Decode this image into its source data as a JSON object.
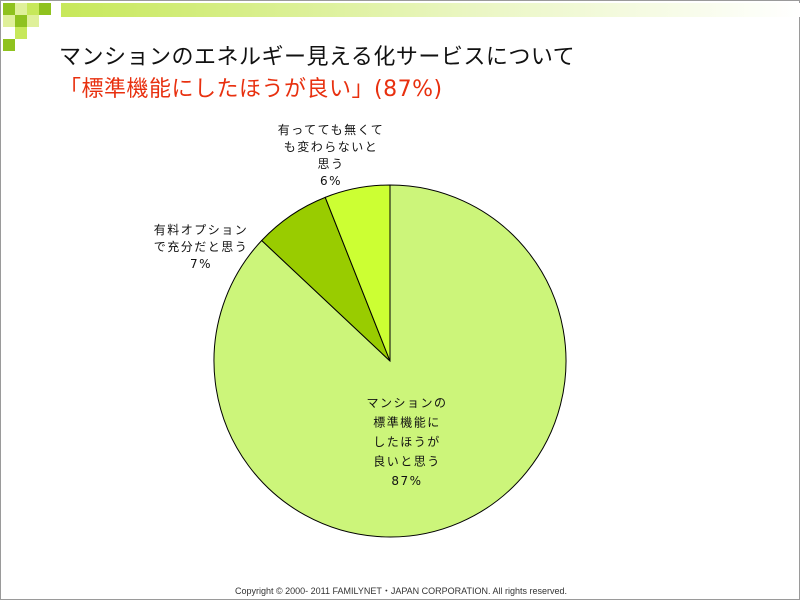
{
  "slide": {
    "title_line1": "マンションのエネルギー見える化サービスについて",
    "title_line2": "「標準機能にしたほうが良い」(87%)",
    "footer": "Copyright © 2000- 2011 FAMILYNET・JAPAN CORPORATION. All rights reserved.",
    "colors": {
      "title_accent": "#e8300f",
      "decor_squares": [
        "#c7e85a",
        "#8fc21f",
        "#dff09a"
      ]
    }
  },
  "chart_data": {
    "type": "pie",
    "title": "",
    "slices": [
      {
        "label_lines": [
          "マンションの",
          "標準機能に",
          "したほうが",
          "良いと思う"
        ],
        "value": 87,
        "value_label": "87%",
        "color": "#ccf57a"
      },
      {
        "label_lines": [
          "有料オプション",
          "で充分だと思う"
        ],
        "value": 7,
        "value_label": "7%",
        "color": "#99cc00"
      },
      {
        "label_lines": [
          "有ってても無くて",
          "も変わらないと",
          "思う"
        ],
        "value": 6,
        "value_label": "6%",
        "color": "#ccff33"
      }
    ]
  }
}
